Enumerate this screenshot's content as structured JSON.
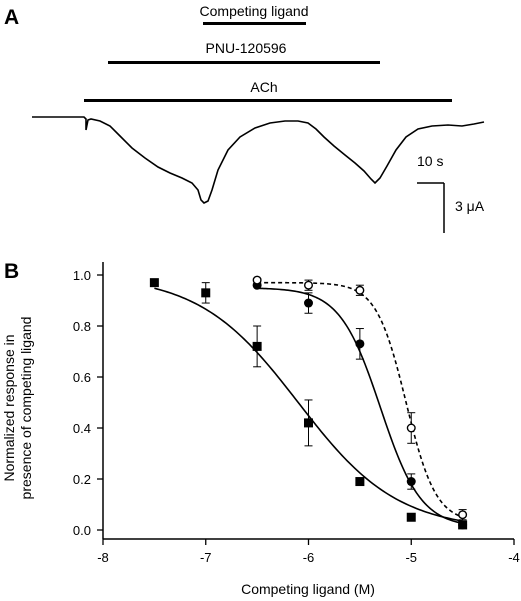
{
  "panel_a": {
    "letter": "A",
    "bars": [
      {
        "label": "Competing ligand"
      },
      {
        "label": "PNU-120596"
      },
      {
        "label": "ACh"
      }
    ],
    "scale_time": "10 s",
    "scale_current": "3  μA"
  },
  "panel_b": {
    "letter": "B"
  },
  "chart_data": {
    "type": "scatter",
    "title": "",
    "xlabel": "Competing ligand (M)",
    "ylabel_lines": [
      "Normalized response in",
      "presence of competing ligand"
    ],
    "xlim": [
      -8,
      -4
    ],
    "ylim": [
      0,
      1.05
    ],
    "xticks": [
      -8,
      -7,
      -6,
      -5,
      -4
    ],
    "xtick_labels": [
      "-8",
      "-7",
      "-6",
      "-5",
      "-4"
    ],
    "yticks": [
      0.0,
      0.2,
      0.4,
      0.6,
      0.8,
      1.0
    ],
    "ytick_labels": [
      "0.0",
      "0.2",
      "0.4",
      "0.6",
      "0.8",
      "1.0"
    ],
    "grid": false,
    "series": [
      {
        "marker": "filled-square",
        "line": "solid",
        "x": [
          -7.5,
          -7.0,
          -6.5,
          -6.0,
          -5.5,
          -5.0,
          -4.5
        ],
        "y": [
          0.97,
          0.93,
          0.72,
          0.42,
          0.19,
          0.05,
          0.02
        ],
        "err": [
          0.0,
          0.04,
          0.08,
          0.09,
          0.0,
          0.0,
          0.0
        ],
        "fit": {
          "top": 1.0,
          "bottom": 0.0,
          "logIC50": -6.1,
          "hill": 0.9
        }
      },
      {
        "marker": "filled-circle",
        "line": "solid",
        "x": [
          -6.5,
          -6.0,
          -5.5,
          -5.0,
          -4.5
        ],
        "y": [
          0.96,
          0.89,
          0.73,
          0.19,
          0.02
        ],
        "err": [
          0.0,
          0.04,
          0.06,
          0.03,
          0.0
        ],
        "fit": {
          "top": 0.95,
          "bottom": 0.01,
          "logIC50": -5.3,
          "hill": 2.2
        }
      },
      {
        "marker": "open-circle",
        "line": "dashed",
        "x": [
          -6.5,
          -6.0,
          -5.5,
          -5.0,
          -4.5
        ],
        "y": [
          0.98,
          0.96,
          0.94,
          0.4,
          0.06
        ],
        "err": [
          0.0,
          0.02,
          0.02,
          0.06,
          0.02
        ],
        "fit": {
          "top": 0.97,
          "bottom": 0.03,
          "logIC50": -5.05,
          "hill": 3.0
        }
      }
    ]
  }
}
